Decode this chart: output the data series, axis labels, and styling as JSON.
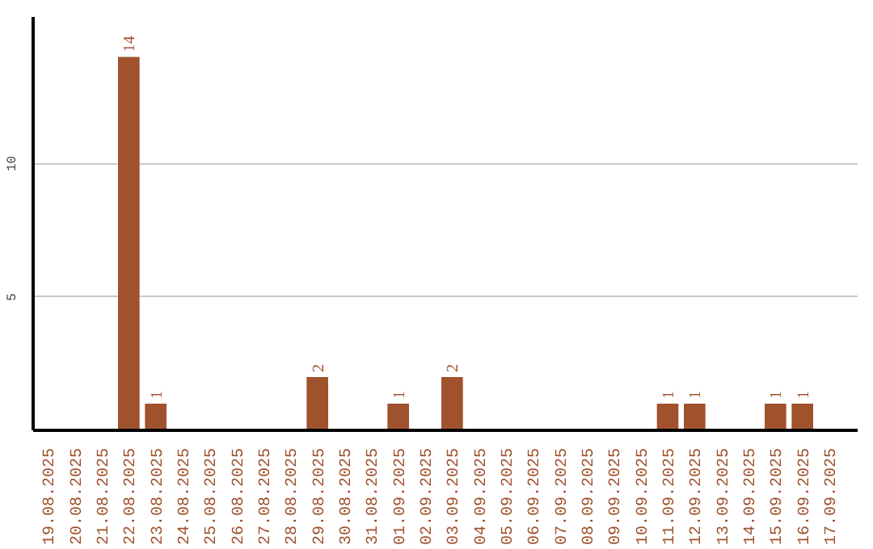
{
  "chart_data": {
    "type": "bar",
    "categories": [
      "19.08.2025",
      "20.08.2025",
      "21.08.2025",
      "22.08.2025",
      "23.08.2025",
      "24.08.2025",
      "25.08.2025",
      "26.08.2025",
      "27.08.2025",
      "28.08.2025",
      "29.08.2025",
      "30.08.2025",
      "31.08.2025",
      "01.09.2025",
      "02.09.2025",
      "03.09.2025",
      "04.09.2025",
      "05.09.2025",
      "06.09.2025",
      "07.09.2025",
      "08.09.2025",
      "09.09.2025",
      "10.09.2025",
      "11.09.2025",
      "12.09.2025",
      "13.09.2025",
      "14.09.2025",
      "15.09.2025",
      "16.09.2025",
      "17.09.2025"
    ],
    "values": [
      0,
      0,
      0,
      14,
      1,
      0,
      0,
      0,
      0,
      0,
      2,
      0,
      0,
      1,
      0,
      2,
      0,
      0,
      0,
      0,
      0,
      0,
      0,
      1,
      1,
      0,
      0,
      1,
      1,
      0
    ],
    "value_labels": [
      null,
      null,
      null,
      "14",
      "1",
      null,
      null,
      null,
      null,
      null,
      "2",
      null,
      null,
      "1",
      null,
      "2",
      null,
      null,
      null,
      null,
      null,
      null,
      null,
      "1",
      "1",
      null,
      null,
      "1",
      "1",
      null
    ],
    "color": "#a0522d",
    "ylim": [
      0,
      15.5
    ],
    "yticks": [
      5,
      10
    ],
    "grid": "y"
  }
}
